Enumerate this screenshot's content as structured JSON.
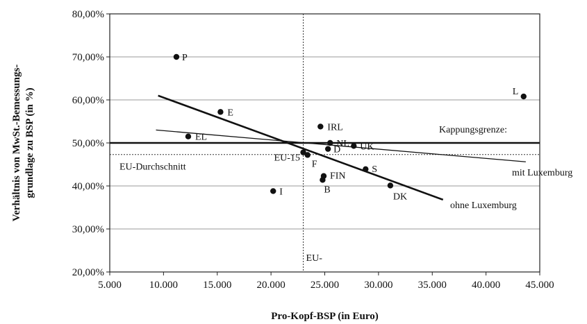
{
  "chart_data": {
    "type": "scatter",
    "title": "",
    "xlabel": "Pro-Kopf-BSP (in Euro)",
    "ylabel_lines": [
      "Verhältnis von MwSt.-Bemessungs-",
      "grundlage zu BSP (in %)"
    ],
    "xlim": [
      5000,
      45000
    ],
    "ylim": [
      20,
      80
    ],
    "x_ticks": [
      5000,
      10000,
      15000,
      20000,
      25000,
      30000,
      35000,
      40000,
      45000
    ],
    "x_tick_labels": [
      "5.000",
      "10.000",
      "15.000",
      "20.000",
      "25.000",
      "30.000",
      "35.000",
      "40.000",
      "45.000"
    ],
    "y_ticks": [
      20,
      30,
      40,
      50,
      60,
      70,
      80
    ],
    "y_tick_labels": [
      "20,00%",
      "30,00%",
      "40,00%",
      "50,00%",
      "60,00%",
      "70,00%",
      "80,00%"
    ],
    "grid": true,
    "points": [
      {
        "label": "P",
        "x": 11200,
        "y": 70.0
      },
      {
        "label": "E",
        "x": 15300,
        "y": 57.2
      },
      {
        "label": "EL",
        "x": 12300,
        "y": 51.5
      },
      {
        "label": "L",
        "x": 43500,
        "y": 60.8
      },
      {
        "label": "IRL",
        "x": 24600,
        "y": 53.8
      },
      {
        "label": "NL",
        "x": 25500,
        "y": 50.0
      },
      {
        "label": "D",
        "x": 25300,
        "y": 48.6
      },
      {
        "label": "UK",
        "x": 27700,
        "y": 49.3
      },
      {
        "label": "EU-15",
        "x": 23000,
        "y": 47.8
      },
      {
        "label": "F",
        "x": 23400,
        "y": 47.2
      },
      {
        "label": "FIN",
        "x": 24900,
        "y": 42.3
      },
      {
        "label": "S",
        "x": 28800,
        "y": 43.9
      },
      {
        "label": "B",
        "x": 24800,
        "y": 41.4
      },
      {
        "label": "I",
        "x": 20200,
        "y": 38.8
      },
      {
        "label": "DK",
        "x": 31100,
        "y": 40.1
      }
    ],
    "reference_lines": {
      "eu_average_y": 47.3,
      "eu_average_label": "EU-Durchschnitt",
      "eu_x": 23000,
      "eu_x_label": "EU-",
      "cap_y": 50.0,
      "cap_label": "Kappungsgrenze:"
    },
    "trend_lines": [
      {
        "label": "mit Luxemburg",
        "x": [
          9300,
          43700
        ],
        "y": [
          53.0,
          45.6
        ]
      },
      {
        "label": "ohne Luxemburg",
        "x": [
          9500,
          36000
        ],
        "y": [
          61.0,
          36.8
        ]
      }
    ]
  }
}
